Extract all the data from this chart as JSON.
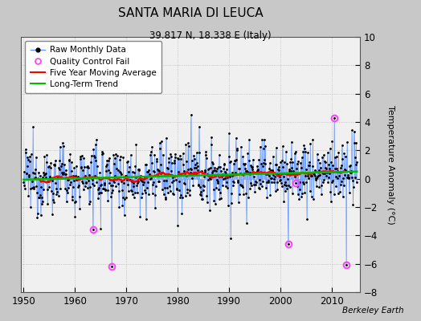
{
  "title": "SANTA MARIA DI LEUCA",
  "subtitle": "39.817 N, 18.338 E (Italy)",
  "ylabel": "Temperature Anomaly (°C)",
  "credit": "Berkeley Earth",
  "year_start": 1950,
  "year_end": 2014,
  "ylim": [
    -8,
    10
  ],
  "yticks": [
    -8,
    -6,
    -4,
    -2,
    0,
    2,
    4,
    6,
    8,
    10
  ],
  "xticks": [
    1950,
    1960,
    1970,
    1980,
    1990,
    2000,
    2010
  ],
  "background_color": "#c8c8c8",
  "plot_bg_color": "#f0f0f0",
  "line_color": "#6699ff",
  "dot_color": "#000000",
  "ma_color": "#ff0000",
  "trend_color": "#00bb00",
  "qc_color": "#ff44ff",
  "seed": 12345,
  "n_months": 780,
  "noise_std": 1.3,
  "trend_slope": 0.008,
  "ma_window": 60,
  "qc_fail_times": [
    1963.5,
    1967.2,
    2001.5,
    2003.0,
    2010.5,
    2012.8
  ],
  "qc_fail_values": [
    -3.6,
    -6.2,
    -4.6,
    -0.3,
    4.3,
    -6.1
  ]
}
